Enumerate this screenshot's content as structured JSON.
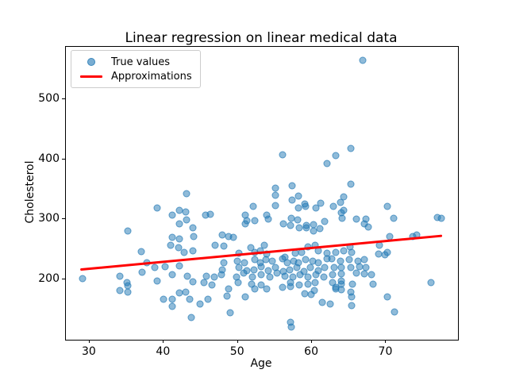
{
  "window": {
    "title": "Linear regression on linear medical data"
  },
  "colors": {
    "scatter": "#1f77b4",
    "scatter_alpha": 0.5,
    "line": "#ff0000",
    "background": "#ffffff",
    "legend_border": "#cccccc",
    "axis": "#000000"
  },
  "chart_data": {
    "type": "scatter",
    "title": "Linear regression on linear medical data",
    "xlabel": "Age",
    "ylabel": "Cholesterol",
    "xlim": [
      26.9,
      79.8
    ],
    "ylim": [
      98,
      586
    ],
    "x_ticks": [
      30,
      40,
      50,
      60,
      70
    ],
    "y_ticks": [
      200,
      300,
      400,
      500
    ],
    "grid": false,
    "legend": {
      "position": "upper left",
      "entries": [
        {
          "label": "True values",
          "type": "marker",
          "color": "#1f77b4"
        },
        {
          "label": "Approximations",
          "type": "line",
          "color": "#ff0000"
        }
      ]
    },
    "series": [
      {
        "name": "True values",
        "type": "scatter",
        "color": "#1f77b4",
        "alpha": 0.5,
        "points": [
          [
            67,
            564
          ],
          [
            65.3,
            417
          ],
          [
            63.3,
            405
          ],
          [
            62.1,
            391
          ],
          [
            56.1,
            406
          ],
          [
            43.2,
            341
          ],
          [
            39.2,
            318
          ],
          [
            42.2,
            313
          ],
          [
            43.1,
            311
          ],
          [
            41.3,
            305
          ],
          [
            42.2,
            291
          ],
          [
            43.2,
            298
          ],
          [
            44,
            284
          ],
          [
            35.3,
            279
          ],
          [
            41.2,
            268
          ],
          [
            42.2,
            266
          ],
          [
            44.1,
            270
          ],
          [
            55.2,
            350
          ],
          [
            57.4,
            354
          ],
          [
            55.2,
            339
          ],
          [
            58.3,
            337
          ],
          [
            57.4,
            331
          ],
          [
            55.2,
            322
          ],
          [
            59.1,
            324
          ],
          [
            61.3,
            325
          ],
          [
            52.2,
            320
          ],
          [
            58.3,
            317
          ],
          [
            59.2,
            320
          ],
          [
            60.6,
            317
          ],
          [
            45.7,
            306
          ],
          [
            46.4,
            307
          ],
          [
            51.1,
            305
          ],
          [
            51.3,
            297
          ],
          [
            51.1,
            291
          ],
          [
            52.4,
            297
          ],
          [
            54,
            306
          ],
          [
            54.2,
            299
          ],
          [
            57.3,
            300
          ],
          [
            58.2,
            298
          ],
          [
            59.4,
            288
          ],
          [
            60.3,
            290
          ],
          [
            61.8,
            295
          ],
          [
            56.2,
            291
          ],
          [
            57.2,
            289
          ],
          [
            58.4,
            284
          ],
          [
            59.3,
            285
          ],
          [
            60.3,
            279
          ],
          [
            61.2,
            283
          ],
          [
            48,
            273
          ],
          [
            48.9,
            270
          ],
          [
            49.5,
            268
          ],
          [
            64.4,
            336
          ],
          [
            64,
            327
          ],
          [
            65.3,
            357
          ],
          [
            64.4,
            314
          ],
          [
            64.1,
            309
          ],
          [
            64.2,
            301
          ],
          [
            63,
            320
          ],
          [
            66.1,
            299
          ],
          [
            67.4,
            299
          ],
          [
            67.2,
            291
          ],
          [
            67.7,
            286
          ],
          [
            70.3,
            320
          ],
          [
            71.1,
            300
          ],
          [
            77,
            302
          ],
          [
            77.5,
            300
          ],
          [
            29.2,
            200
          ],
          [
            34.2,
            204
          ],
          [
            35.1,
            193
          ],
          [
            35.3,
            188
          ],
          [
            34.2,
            180
          ],
          [
            35.2,
            178
          ],
          [
            37.1,
            245
          ],
          [
            37.8,
            226
          ],
          [
            38.9,
            218
          ],
          [
            39.2,
            196
          ],
          [
            40.3,
            220
          ],
          [
            37.2,
            210
          ],
          [
            41,
            255
          ],
          [
            42.1,
            251
          ],
          [
            42.9,
            243
          ],
          [
            44,
            246
          ],
          [
            42.2,
            221
          ],
          [
            41.2,
            207
          ],
          [
            40.1,
            166
          ],
          [
            41.2,
            165
          ],
          [
            42.2,
            176
          ],
          [
            43.1,
            177
          ],
          [
            43.6,
            166
          ],
          [
            41.2,
            154
          ],
          [
            43.8,
            135
          ],
          [
            43.3,
            204
          ],
          [
            44,
            194
          ],
          [
            47,
            256
          ],
          [
            48.2,
            254
          ],
          [
            51.8,
            251
          ],
          [
            53.7,
            256
          ],
          [
            59.6,
            253
          ],
          [
            60.5,
            256
          ],
          [
            50.2,
            242
          ],
          [
            52.4,
            244
          ],
          [
            53.1,
            246
          ],
          [
            54,
            241
          ],
          [
            56.5,
            235
          ],
          [
            57.8,
            242
          ],
          [
            58.7,
            244
          ],
          [
            61,
            246
          ],
          [
            62.1,
            242
          ],
          [
            48.2,
            226
          ],
          [
            50,
            229
          ],
          [
            51,
            226
          ],
          [
            52.4,
            232
          ],
          [
            53.1,
            226
          ],
          [
            53.9,
            232
          ],
          [
            54.7,
            229
          ],
          [
            56.1,
            233
          ],
          [
            56.8,
            226
          ],
          [
            57.6,
            229
          ],
          [
            58.3,
            226
          ],
          [
            59.2,
            232
          ],
          [
            60.2,
            229
          ],
          [
            61,
            226
          ],
          [
            62.1,
            233
          ],
          [
            48,
            215
          ],
          [
            50.2,
            218
          ],
          [
            51.3,
            213
          ],
          [
            52.3,
            215
          ],
          [
            53.2,
            220
          ],
          [
            54.2,
            213
          ],
          [
            55.2,
            218
          ],
          [
            56.2,
            212
          ],
          [
            57.1,
            215
          ],
          [
            58.1,
            218
          ],
          [
            59,
            212
          ],
          [
            59.9,
            218
          ],
          [
            60.9,
            213
          ],
          [
            61.8,
            218
          ],
          [
            45.9,
            204
          ],
          [
            46.9,
            202
          ],
          [
            47.9,
            207
          ],
          [
            49.9,
            203
          ],
          [
            50.9,
            209
          ],
          [
            52.1,
            202
          ],
          [
            53.2,
            207
          ],
          [
            54.4,
            203
          ],
          [
            55.4,
            209
          ],
          [
            56.5,
            204
          ],
          [
            57.5,
            202
          ],
          [
            58.5,
            207
          ],
          [
            59.6,
            203
          ],
          [
            60.6,
            207
          ],
          [
            61.7,
            203
          ],
          [
            45.5,
            193
          ],
          [
            46.6,
            189
          ],
          [
            48.9,
            182
          ],
          [
            50.1,
            193
          ],
          [
            52,
            191
          ],
          [
            53.2,
            189
          ],
          [
            56.1,
            185
          ],
          [
            57.2,
            193
          ],
          [
            58.4,
            189
          ],
          [
            59.6,
            191
          ],
          [
            60.5,
            193
          ],
          [
            51.1,
            169
          ],
          [
            52.4,
            182
          ],
          [
            54,
            183
          ],
          [
            57.2,
            186
          ],
          [
            59.1,
            175
          ],
          [
            60,
            174
          ],
          [
            60.4,
            180
          ],
          [
            61.5,
            160
          ],
          [
            62.6,
            158
          ],
          [
            63.3,
            185
          ],
          [
            65.4,
            170
          ],
          [
            49.1,
            143
          ],
          [
            57.2,
            127
          ],
          [
            57.3,
            119
          ],
          [
            46.1,
            165
          ],
          [
            48.6,
            171
          ],
          [
            45,
            158
          ],
          [
            63.3,
            244
          ],
          [
            64.4,
            246
          ],
          [
            65.4,
            244
          ],
          [
            65.2,
            253
          ],
          [
            69.2,
            255
          ],
          [
            70.3,
            243
          ],
          [
            62.8,
            233
          ],
          [
            64,
            229
          ],
          [
            65.1,
            232
          ],
          [
            66.3,
            229
          ],
          [
            67.2,
            232
          ],
          [
            69.1,
            241
          ],
          [
            69.9,
            240
          ],
          [
            63.1,
            219
          ],
          [
            64.1,
            218
          ],
          [
            65.3,
            218
          ],
          [
            66.5,
            220
          ],
          [
            67.4,
            218
          ],
          [
            64.1,
            208
          ],
          [
            62.9,
            206
          ],
          [
            66.1,
            209
          ],
          [
            67.2,
            208
          ],
          [
            68.1,
            206
          ],
          [
            64.1,
            196
          ],
          [
            62.9,
            193
          ],
          [
            64.1,
            190
          ],
          [
            65.6,
            191
          ],
          [
            64.1,
            181
          ],
          [
            65.3,
            178
          ],
          [
            68.3,
            190
          ],
          [
            63.3,
            182
          ],
          [
            65.4,
            155
          ],
          [
            76.2,
            193
          ],
          [
            70.3,
            169
          ],
          [
            71.2,
            144
          ],
          [
            70.6,
            270
          ],
          [
            73.7,
            270
          ],
          [
            74.2,
            273
          ]
        ]
      },
      {
        "name": "Approximations",
        "type": "line",
        "color": "#ff0000",
        "linewidth": 3,
        "points": [
          [
            29,
            215
          ],
          [
            77.5,
            271
          ]
        ]
      }
    ]
  }
}
